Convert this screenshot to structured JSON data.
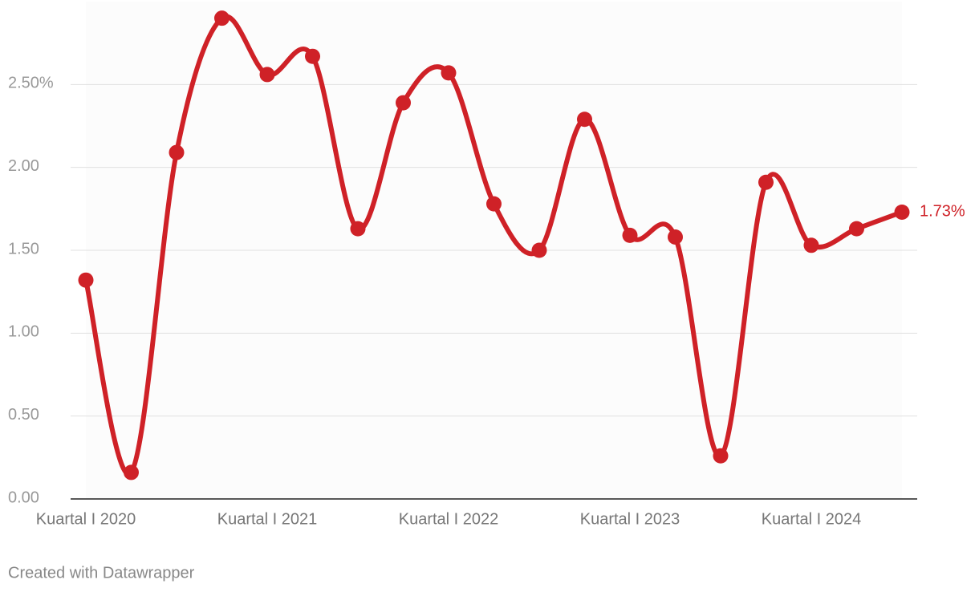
{
  "chart_data": {
    "type": "line",
    "categories": [
      "Kuartal I 2020",
      null,
      null,
      null,
      "Kuartal I 2021",
      null,
      null,
      null,
      "Kuartal I 2022",
      null,
      null,
      null,
      "Kuartal I 2023",
      null,
      null,
      null,
      "Kuartal I 2024",
      null,
      null
    ],
    "series": [
      {
        "color": "#cf2127",
        "values": [
          1.32,
          0.16,
          2.09,
          2.9,
          2.56,
          2.67,
          1.63,
          2.39,
          2.57,
          1.78,
          1.5,
          2.29,
          1.59,
          1.58,
          0.26,
          1.91,
          1.53,
          1.63,
          1.73
        ],
        "value_labels": [
          null,
          null,
          null,
          null,
          null,
          null,
          null,
          null,
          null,
          null,
          null,
          null,
          null,
          null,
          null,
          null,
          null,
          null,
          "1.73%"
        ]
      }
    ],
    "ylim": [
      0,
      3
    ],
    "yticks": [
      {
        "value": 0,
        "label": "0.00"
      },
      {
        "value": 0.5,
        "label": "0.50"
      },
      {
        "value": 1,
        "label": "1.00"
      },
      {
        "value": 1.5,
        "label": "1.50"
      },
      {
        "value": 2,
        "label": "2.00"
      },
      {
        "value": 2.5,
        "label": "2.50%"
      }
    ],
    "grid": true,
    "credit": "Created with Datawrapper"
  }
}
